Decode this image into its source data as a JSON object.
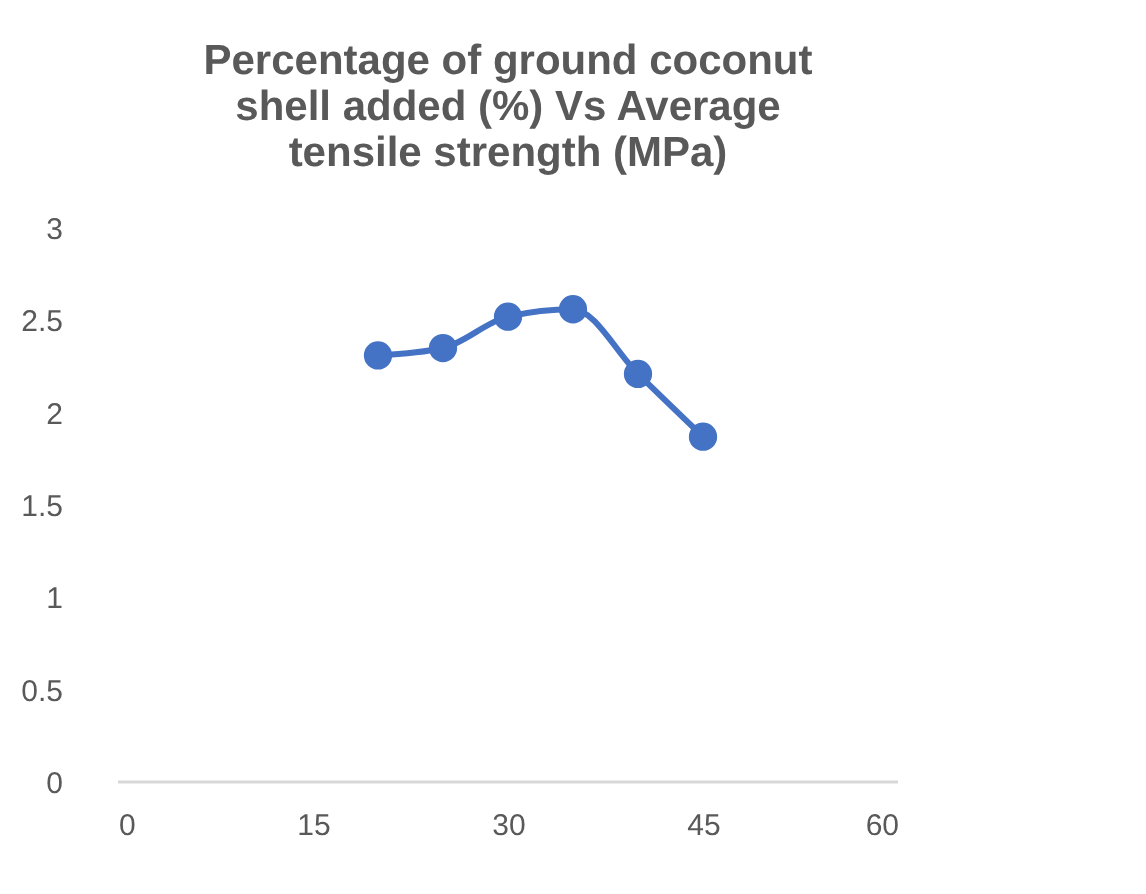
{
  "chart_data": {
    "type": "line",
    "title": "Percentage of ground coconut shell added (%) Vs Average tensile strength (MPa)",
    "x": [
      20,
      25,
      30,
      35,
      40,
      45
    ],
    "series": [
      {
        "color": "#4472c4",
        "values": [
          2.31,
          2.35,
          2.52,
          2.56,
          2.21,
          1.87
        ]
      }
    ],
    "xlim": [
      0,
      60
    ],
    "xticks": [
      0,
      15,
      30,
      45,
      60
    ],
    "ylim": [
      0,
      3
    ],
    "yticks": [
      0,
      0.5,
      1,
      1.5,
      2,
      2.5,
      3
    ],
    "grid": false,
    "legend": false,
    "marker": "circle",
    "line_style": "solid"
  }
}
